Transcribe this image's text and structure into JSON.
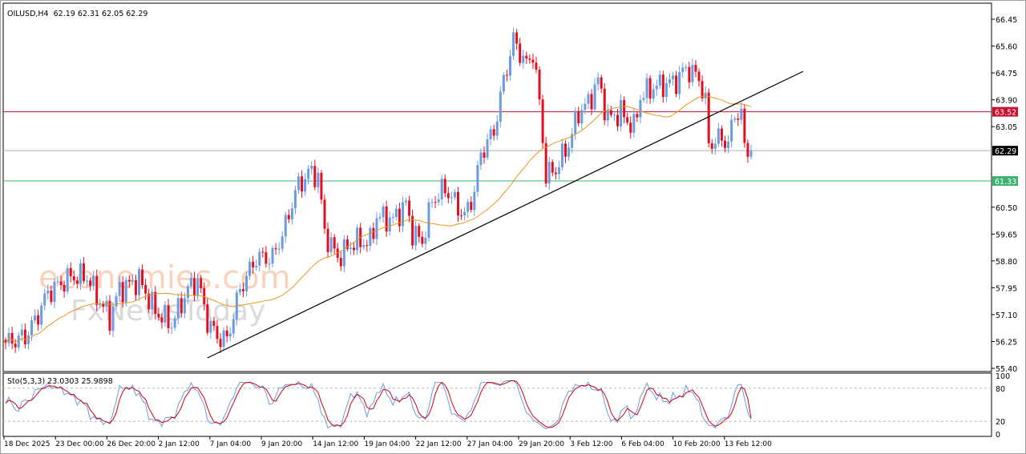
{
  "header": {
    "symbol": "OILUSD,H4",
    "ohlc": "62.19 62.31 62.05 62.29"
  },
  "indicator": {
    "label": "Sto(5,3,3) 23.0303 25.9898",
    "levels": [
      "100",
      "80",
      "20",
      "0"
    ]
  },
  "watermark": {
    "line1": "economies.com",
    "line2": "FxNewsToday"
  },
  "colors": {
    "bull": "#6b9be0",
    "bear": "#e01020",
    "ma": "#e8961e",
    "resistance": "#c8102e",
    "support": "#3cb371",
    "current": "#000000",
    "stoch_main": "#6b9be0",
    "stoch_signal": "#d00010"
  },
  "chart_data": {
    "type": "candlestick",
    "title": "OILUSD,H4",
    "ylim": [
      55.4,
      66.45
    ],
    "y_ticks": [
      "66.45",
      "65.60",
      "64.75",
      "63.90",
      "63.05",
      "62.29",
      "60.50",
      "59.65",
      "58.80",
      "57.95",
      "57.10",
      "56.25",
      "55.40"
    ],
    "y_tick_values": [
      66.45,
      65.6,
      64.75,
      63.9,
      63.05,
      null,
      60.5,
      59.65,
      58.8,
      57.95,
      57.1,
      56.25,
      55.4
    ],
    "x_ticks": [
      "18 Dec 2025",
      "23 Dec 00:00",
      "26 Dec 20:00",
      "2 Jan 12:00",
      "7 Jan 04:00",
      "9 Jan 20:00",
      "14 Jan 12:00",
      "19 Jan 04:00",
      "22 Jan 12:00",
      "27 Jan 04:00",
      "29 Jan 20:00",
      "3 Feb 12:00",
      "6 Feb 04:00",
      "10 Feb 20:00",
      "13 Feb 12:00"
    ],
    "bars": 230,
    "close_anchors": [
      [
        0,
        56.2
      ],
      [
        6,
        56.4
      ],
      [
        9,
        56.9
      ],
      [
        13,
        57.8
      ],
      [
        20,
        58.3
      ],
      [
        25,
        58.3
      ],
      [
        29,
        57.5
      ],
      [
        32,
        57.0
      ],
      [
        35,
        57.9
      ],
      [
        41,
        58.2
      ],
      [
        46,
        57.2
      ],
      [
        51,
        56.8
      ],
      [
        56,
        57.9
      ],
      [
        59,
        58.2
      ],
      [
        62,
        56.9
      ],
      [
        65,
        56.4
      ],
      [
        68,
        56.3
      ],
      [
        72,
        57.9
      ],
      [
        77,
        58.9
      ],
      [
        82,
        58.9
      ],
      [
        86,
        59.9
      ],
      [
        89,
        61.0
      ],
      [
        93,
        61.6
      ],
      [
        96,
        61.5
      ],
      [
        98,
        59.7
      ],
      [
        102,
        58.9
      ],
      [
        107,
        59.4
      ],
      [
        112,
        59.4
      ],
      [
        114,
        60.2
      ],
      [
        119,
        60.1
      ],
      [
        123,
        60.6
      ],
      [
        125,
        59.7
      ],
      [
        128,
        59.4
      ],
      [
        131,
        60.7
      ],
      [
        135,
        61.1
      ],
      [
        139,
        60.5
      ],
      [
        141,
        60.2
      ],
      [
        144,
        61.0
      ],
      [
        146,
        62.2
      ],
      [
        150,
        62.9
      ],
      [
        153,
        64.5
      ],
      [
        156,
        65.8
      ],
      [
        160,
        65.0
      ],
      [
        162,
        65.4
      ],
      [
        164,
        63.8
      ],
      [
        166,
        61.5
      ],
      [
        169,
        61.7
      ],
      [
        173,
        62.5
      ],
      [
        176,
        63.5
      ],
      [
        179,
        63.8
      ],
      [
        182,
        64.5
      ],
      [
        185,
        63.3
      ],
      [
        189,
        63.5
      ],
      [
        193,
        63.0
      ],
      [
        195,
        64.0
      ],
      [
        199,
        64.3
      ],
      [
        203,
        64.4
      ],
      [
        206,
        64.5
      ],
      [
        209,
        64.9
      ],
      [
        213,
        64.6
      ],
      [
        215,
        63.8
      ],
      [
        216,
        62.5
      ],
      [
        220,
        62.7
      ],
      [
        222,
        62.5
      ],
      [
        224,
        63.5
      ],
      [
        226,
        63.4
      ],
      [
        227,
        62.4
      ],
      [
        229,
        62.29
      ]
    ],
    "ma_period": 40,
    "trendline": {
      "from": [
        62,
        55.73
      ],
      "to": [
        245,
        64.8
      ]
    },
    "hlines": [
      {
        "value": 63.52,
        "label": "63.52",
        "kind": "resistance"
      },
      {
        "value": 62.29,
        "label": "62.29",
        "kind": "current"
      },
      {
        "value": 61.33,
        "label": "61.33",
        "kind": "support"
      }
    ],
    "stochastic": {
      "k": 5,
      "d": 3,
      "slowing": 3,
      "main_last": 23.0303,
      "signal_last": 25.9898
    }
  }
}
